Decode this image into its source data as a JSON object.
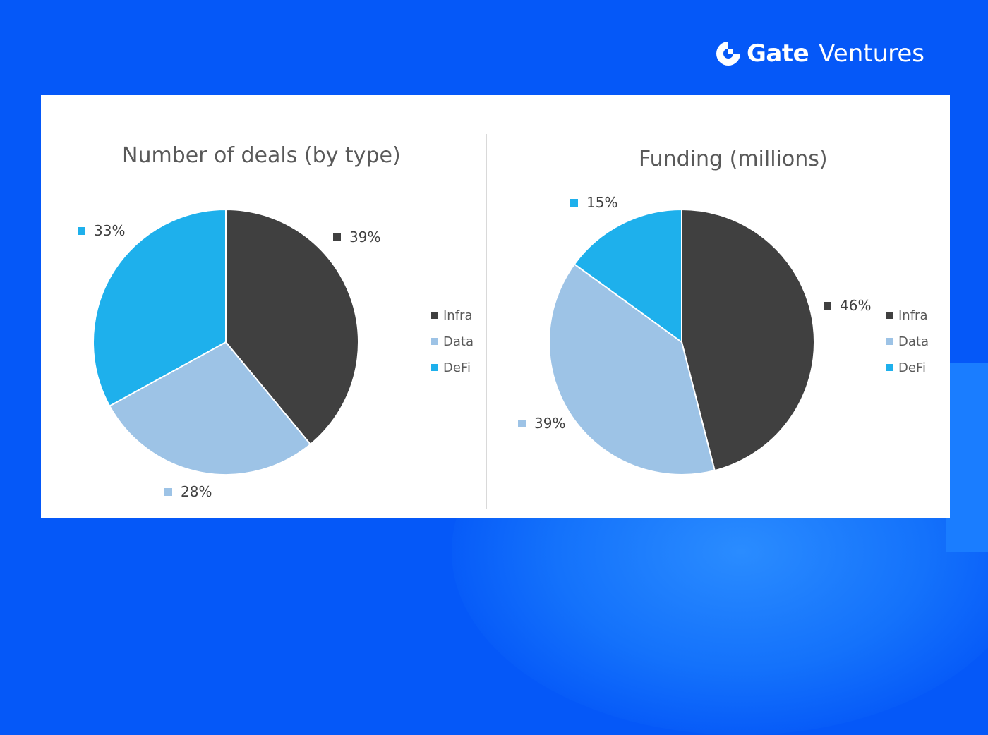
{
  "brand": {
    "logo_bold": "Gate",
    "logo_light": "Ventures"
  },
  "colors": {
    "Infra": "#404040",
    "Data": "#9dc3e6",
    "DeFi": "#1eb0ec"
  },
  "chart_data": [
    {
      "type": "pie",
      "title": "Number of deals (by type)",
      "categories": [
        "Infra",
        "Data",
        "DeFi"
      ],
      "values": [
        39,
        28,
        33
      ],
      "labels": [
        "39%",
        "28%",
        "33%"
      ],
      "legend": "right"
    },
    {
      "type": "pie",
      "title": "Funding (millions)",
      "categories": [
        "Infra",
        "Data",
        "DeFi"
      ],
      "values": [
        46,
        39,
        15
      ],
      "labels": [
        "46%",
        "39%",
        "15%"
      ],
      "legend": "right"
    }
  ]
}
